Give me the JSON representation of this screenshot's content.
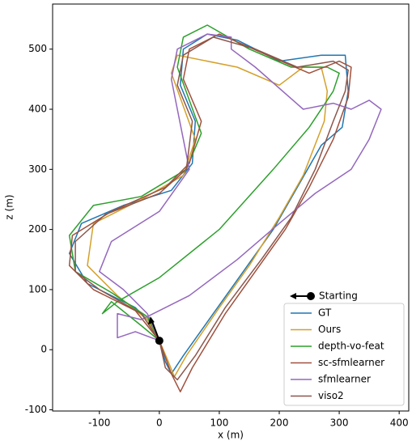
{
  "chart_data": {
    "type": "line",
    "xlabel": "x (m)",
    "ylabel": "z (m)",
    "xlim": [
      -178,
      416
    ],
    "ylim": [
      -102,
      575
    ],
    "xticks": [
      -100,
      0,
      100,
      200,
      300,
      400
    ],
    "yticks": [
      -100,
      0,
      100,
      200,
      300,
      400,
      500
    ],
    "legend": "lower right",
    "start": {
      "label": "Starting",
      "x": 0,
      "z": 15
    },
    "series": [
      {
        "name": "GT",
        "color": "#1f77b4",
        "x": [
          0,
          10,
          20,
          40,
          90,
          140,
          190,
          230,
          270,
          305,
          315,
          310,
          270,
          200,
          130,
          80,
          40,
          35,
          60,
          55,
          20,
          -60,
          -130,
          -150,
          -120,
          -40,
          -10,
          0
        ],
        "values": [
          15,
          -20,
          -40,
          -10,
          60,
          130,
          200,
          270,
          340,
          370,
          430,
          490,
          490,
          480,
          515,
          525,
          500,
          440,
          380,
          310,
          265,
          240,
          210,
          160,
          110,
          70,
          40,
          15
        ]
      },
      {
        "name": "Ours",
        "color": "#d4a02a",
        "x": [
          0,
          15,
          25,
          45,
          100,
          150,
          200,
          240,
          275,
          280,
          270,
          240,
          200,
          130,
          30,
          20,
          60,
          40,
          -30,
          -110,
          -120,
          -70,
          -20,
          0
        ],
        "values": [
          15,
          -20,
          -45,
          -10,
          70,
          140,
          220,
          290,
          380,
          430,
          470,
          470,
          440,
          470,
          490,
          460,
          350,
          290,
          250,
          210,
          140,
          90,
          50,
          15
        ]
      },
      {
        "name": "depth-vo-feat",
        "color": "#2ca02c",
        "x": [
          0,
          -30,
          -80,
          -95,
          -70,
          0,
          100,
          190,
          250,
          290,
          300,
          280,
          220,
          150,
          80,
          40,
          30,
          70,
          45,
          -30,
          -110,
          -150,
          -140,
          -80,
          -20,
          0
        ],
        "values": [
          15,
          40,
          80,
          60,
          80,
          120,
          200,
          300,
          370,
          430,
          460,
          470,
          470,
          500,
          540,
          520,
          470,
          360,
          300,
          255,
          240,
          190,
          130,
          95,
          55,
          15
        ]
      },
      {
        "name": "sc-sfmlearner",
        "color": "#a0503c",
        "x": [
          0,
          20,
          35,
          55,
          110,
          160,
          210,
          250,
          290,
          315,
          320,
          300,
          250,
          180,
          100,
          50,
          40,
          70,
          50,
          10,
          -80,
          -145,
          -150,
          -110,
          -40,
          0
        ],
        "values": [
          15,
          -40,
          -70,
          -30,
          60,
          130,
          200,
          270,
          350,
          420,
          470,
          480,
          460,
          490,
          525,
          500,
          450,
          380,
          310,
          270,
          230,
          190,
          140,
          100,
          65,
          15
        ]
      },
      {
        "name": "sfmlearner",
        "color": "#9467bd",
        "x": [
          0,
          -40,
          -70,
          -70,
          -30,
          50,
          130,
          200,
          260,
          320,
          350,
          370,
          350,
          320,
          290,
          240,
          160,
          120,
          120,
          80,
          30,
          20,
          50,
          0,
          -80,
          -100,
          -60,
          -20,
          0
        ],
        "values": [
          15,
          30,
          20,
          60,
          50,
          90,
          150,
          210,
          260,
          300,
          350,
          400,
          415,
          400,
          410,
          400,
          470,
          500,
          520,
          525,
          500,
          450,
          300,
          230,
          180,
          130,
          100,
          60,
          15
        ]
      },
      {
        "name": "viso2",
        "color": "#8c564b",
        "x": [
          0,
          10,
          30,
          60,
          110,
          170,
          220,
          260,
          290,
          310,
          315,
          290,
          230,
          160,
          90,
          40,
          30,
          55,
          45,
          0,
          -90,
          -140,
          -140,
          -100,
          -30,
          0
        ],
        "values": [
          15,
          -30,
          -50,
          -10,
          70,
          150,
          220,
          300,
          380,
          430,
          465,
          480,
          470,
          500,
          520,
          490,
          440,
          380,
          300,
          260,
          225,
          180,
          130,
          100,
          60,
          15
        ]
      }
    ]
  }
}
